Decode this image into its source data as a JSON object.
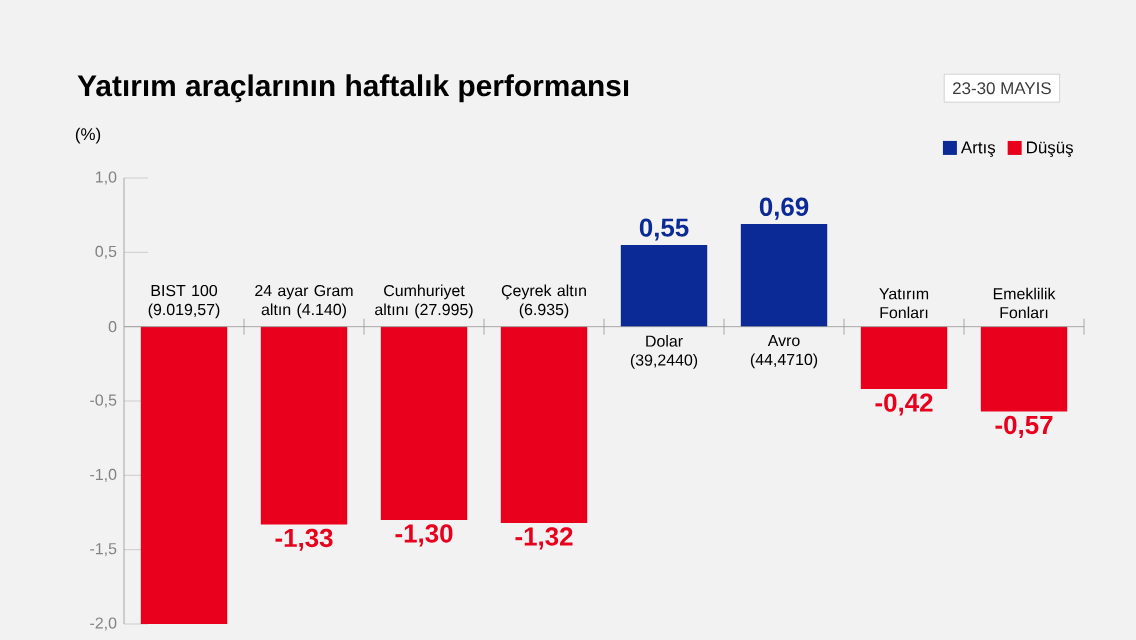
{
  "chart_data": {
    "type": "bar",
    "title": "Yatırım araçlarının haftalık performansı",
    "subtitle": "23-30 MAYIS",
    "ylabel": "(%)",
    "categories": [
      "BIST 100 (9.019,57)",
      "24 ayar Gram altın (4.140)",
      "Cumhuriyet altını (27.995)",
      "Çeyrek altın (6.935)",
      "Dolar (39,2440)",
      "Avro (44,4710)",
      "Yatırım Fonları",
      "Emeklilik Fonları"
    ],
    "series": [
      {
        "name": "Artış",
        "color": "#0b2a96",
        "values": [
          null,
          null,
          null,
          null,
          0.55,
          0.69,
          null,
          null
        ],
        "value_labels": [
          null,
          null,
          null,
          null,
          "0,55",
          "0,69",
          null,
          null
        ]
      },
      {
        "name": "Düşüş",
        "color": "#e8001c",
        "values": [
          -2.0,
          -1.33,
          -1.3,
          -1.32,
          null,
          null,
          -0.42,
          -0.57
        ],
        "value_labels": [
          null,
          "-1,33",
          "-1,30",
          "-1,32",
          null,
          null,
          "-0,42",
          "-0,57"
        ]
      }
    ],
    "ylim": [
      -2.0,
      1.0
    ],
    "yticks": [
      {
        "value": 1.0,
        "label": "1,0"
      },
      {
        "value": 0.5,
        "label": "0,5"
      },
      {
        "value": 0,
        "label": "0"
      },
      {
        "value": -0.5,
        "label": "-0,5"
      },
      {
        "value": -1.0,
        "label": "-1,0"
      },
      {
        "value": -1.5,
        "label": "-1,5"
      },
      {
        "value": -2.0,
        "label": "-2,0"
      }
    ],
    "legend": "top right",
    "grid": false
  }
}
